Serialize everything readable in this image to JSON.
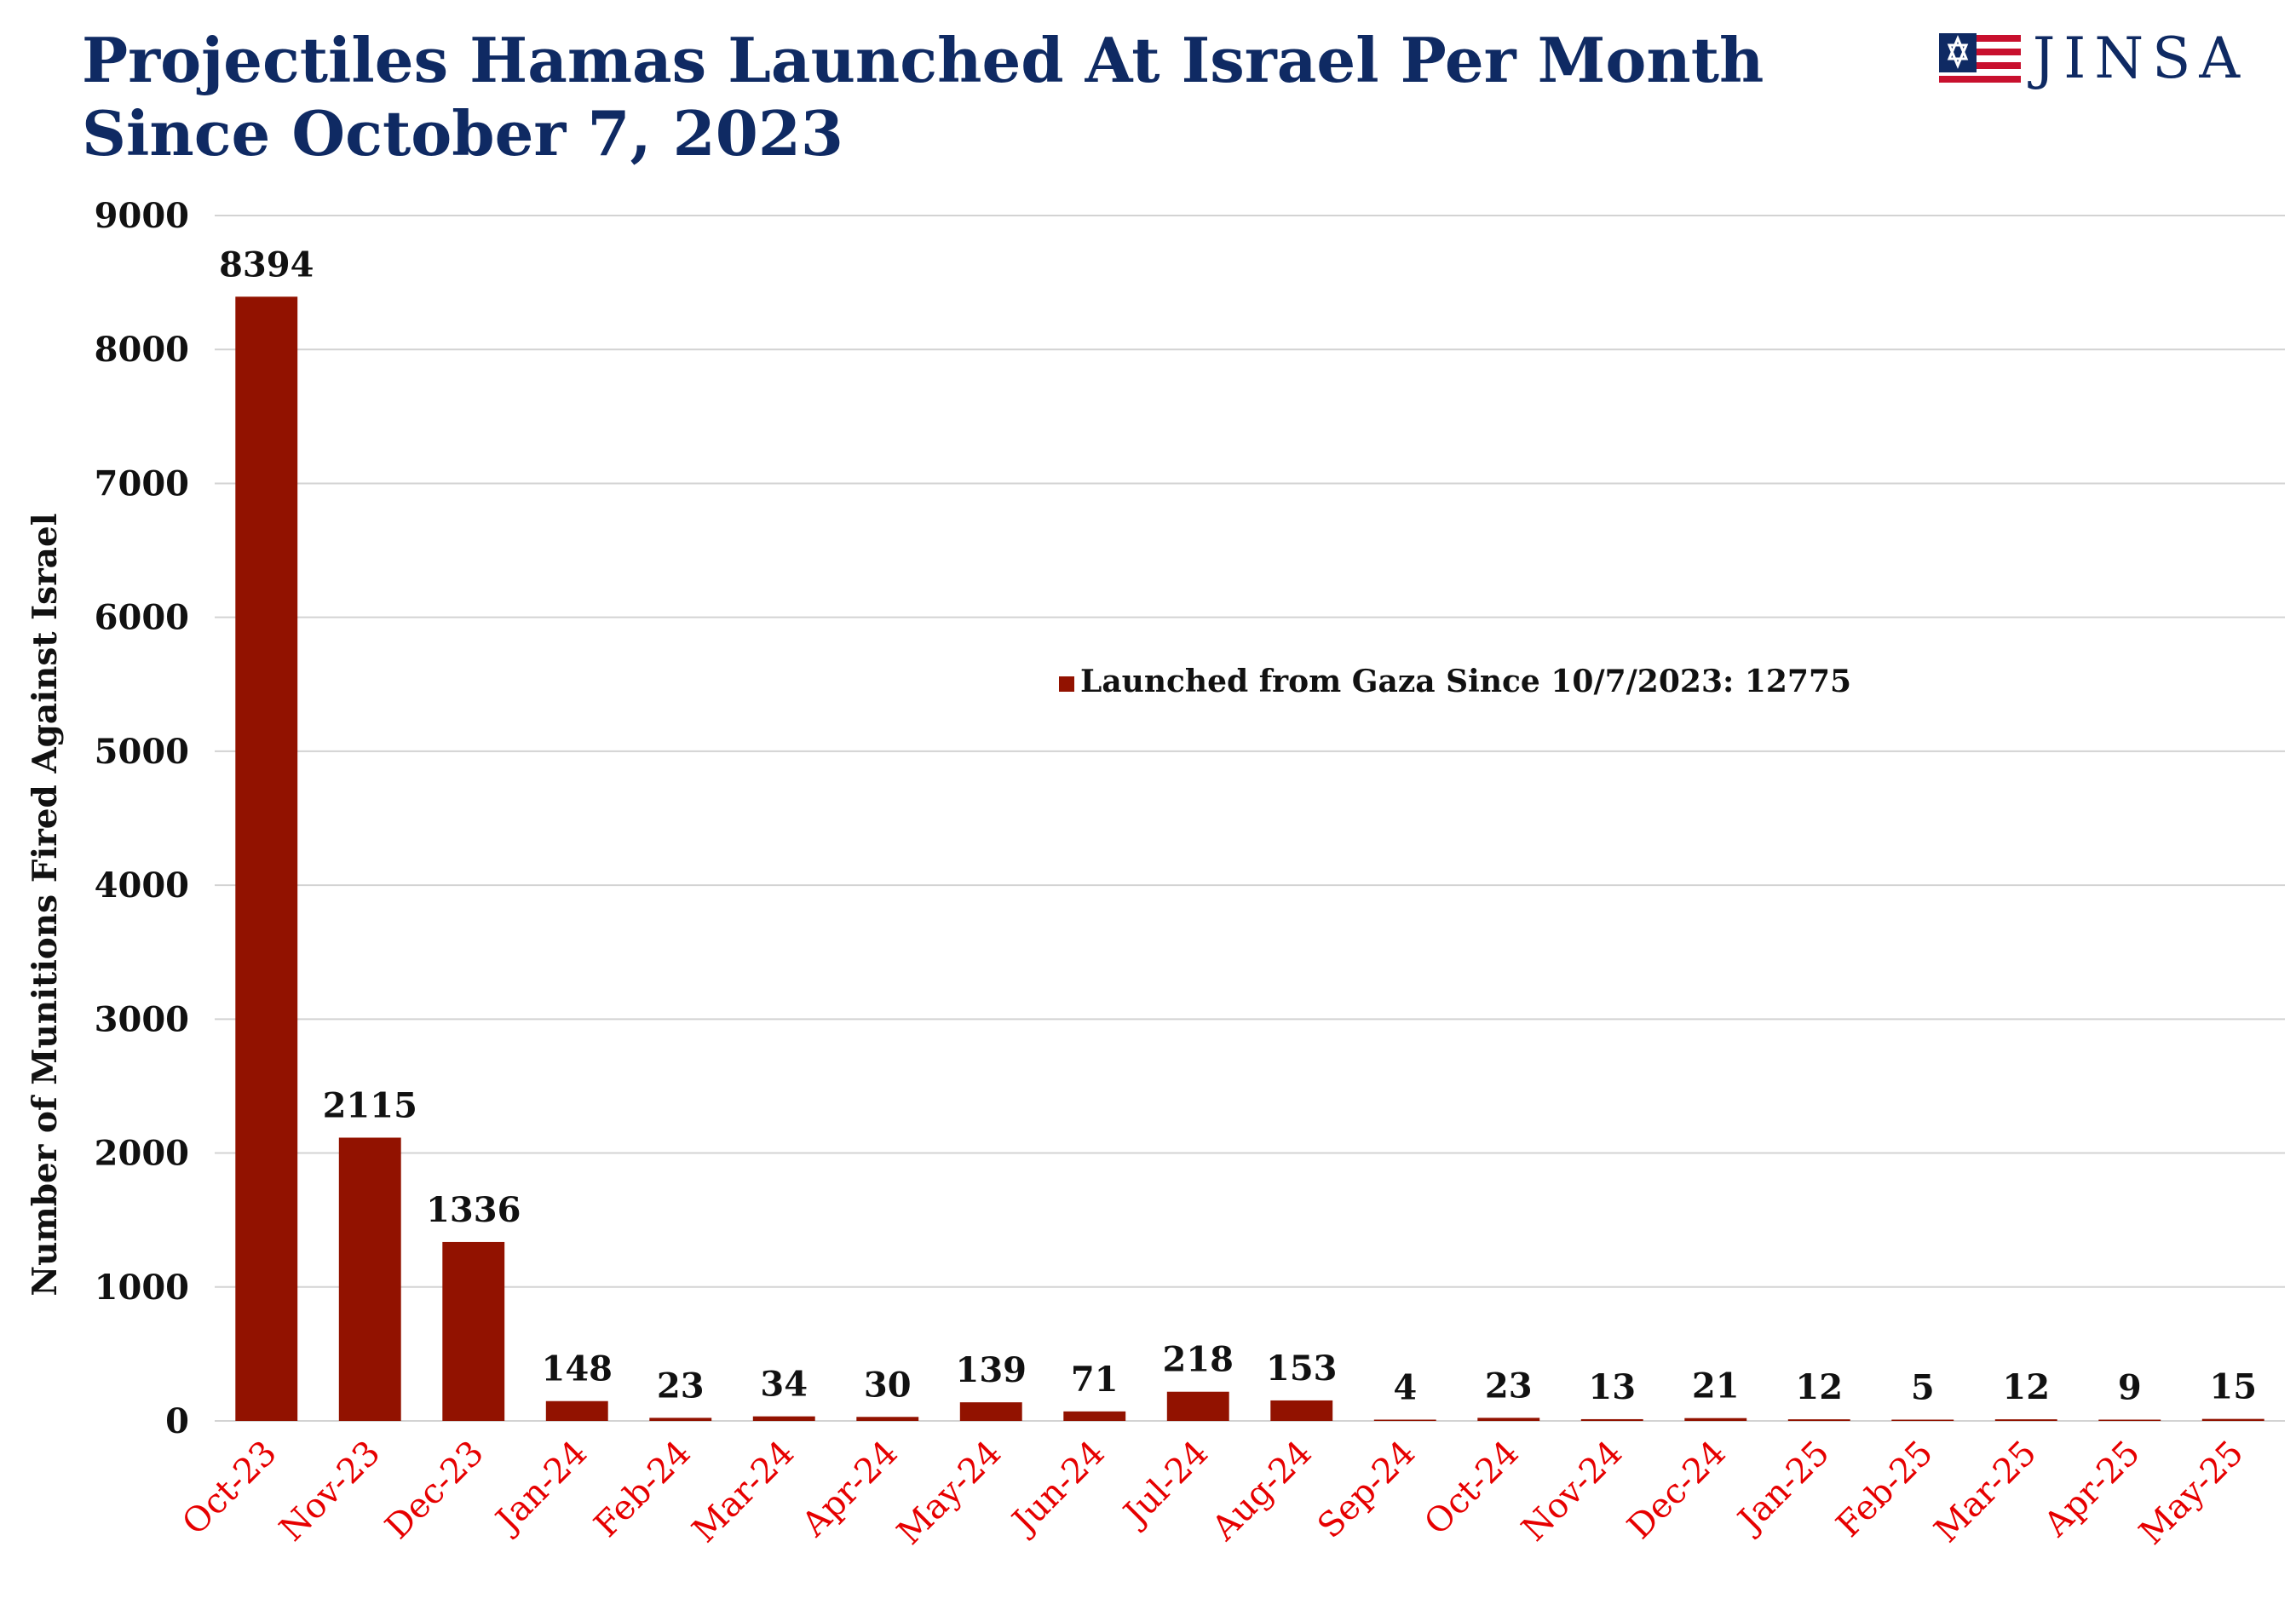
{
  "title_line1": "Projectiles Hamas Launched At Israel Per Month",
  "title_line2": "Since October 7, 2023",
  "logo": {
    "text": "JINSA",
    "icon": "star-of-david-flag-icon"
  },
  "colors": {
    "bar": "#921200",
    "title": "#0f2a63",
    "xtick": "#e60000",
    "grid": "#d3d3d3",
    "logo_red": "#c8102e"
  },
  "chart_data": {
    "type": "bar",
    "categories": [
      "Oct-23",
      "Nov-23",
      "Dec-23",
      "Jan-24",
      "Feb-24",
      "Mar-24",
      "Apr-24",
      "May-24",
      "Jun-24",
      "Jul-24",
      "Aug-24",
      "Sep-24",
      "Oct-24",
      "Nov-24",
      "Dec-24",
      "Jan-25",
      "Feb-25",
      "Mar-25",
      "Apr-25",
      "May-25"
    ],
    "series": [
      {
        "name": "Launched from Gaza Since 10/7/2023: 12775",
        "values": [
          8394,
          2115,
          1336,
          148,
          23,
          34,
          30,
          139,
          71,
          218,
          153,
          4,
          23,
          13,
          21,
          12,
          5,
          12,
          9,
          15
        ]
      }
    ],
    "ylabel": "Number of Munitions Fired Against Israel",
    "ylim": [
      0,
      9000
    ],
    "yticks": [
      0,
      1000,
      2000,
      3000,
      4000,
      5000,
      6000,
      7000,
      8000,
      9000
    ],
    "grid": true,
    "data_labels": true,
    "legend_position": "center"
  }
}
